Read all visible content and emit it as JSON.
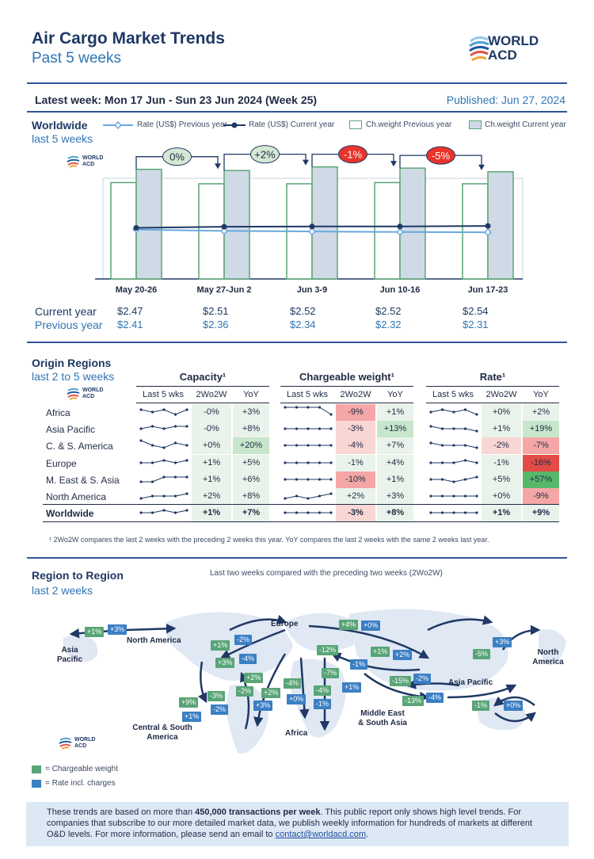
{
  "header": {
    "title": "Air Cargo Market Trends",
    "subtitle": "Past 5 weeks",
    "logo_line1": "WORLD",
    "logo_line2": "ACD",
    "latest_week": "Latest week: Mon 17 Jun - Sun 23 Jun 2024 (Week 25)",
    "published": "Published: Jun 27, 2024"
  },
  "worldwide": {
    "title": "Worldwide",
    "subtitle": "last 5 weeks",
    "small_logo": [
      "WORLD",
      "ACD"
    ],
    "legend": {
      "rate_prev": "Rate (US$) Previous year",
      "rate_curr": "Rate (US$) Current year",
      "weight_prev": "Ch.weight Previous year",
      "weight_curr": "Ch.weight Current year"
    },
    "row_labels": {
      "current": "Current year",
      "previous": "Previous year"
    }
  },
  "chart_data": {
    "type": "bar",
    "categories": [
      "May 20-26",
      "May 27-Jun 2",
      "Jun 3-9",
      "Jun 10-16",
      "Jun 17-23"
    ],
    "series": [
      {
        "name": "Ch.weight Previous year",
        "values": [
          0.8,
          0.79,
          0.79,
          0.8,
          0.79
        ]
      },
      {
        "name": "Ch.weight Current year",
        "values": [
          0.91,
          0.9,
          0.93,
          0.92,
          0.89
        ]
      },
      {
        "name": "Rate (US$) Previous year",
        "values": [
          2.41,
          2.36,
          2.34,
          2.32,
          2.31
        ]
      },
      {
        "name": "Rate (US$) Current year",
        "values": [
          2.47,
          2.51,
          2.52,
          2.52,
          2.54
        ]
      }
    ],
    "rate_labels_current": [
      "$2.47",
      "$2.51",
      "$2.52",
      "$2.52",
      "$2.54"
    ],
    "rate_labels_previous": [
      "$2.41",
      "$2.36",
      "$2.34",
      "$2.32",
      "$2.31"
    ],
    "changes": [
      {
        "label": "0%",
        "color": "#d5e8d4"
      },
      {
        "label": "+2%",
        "color": "#d5e8d4"
      },
      {
        "label": "-1%",
        "color": "#e8342b"
      },
      {
        "label": "-5%",
        "color": "#e8342b"
      }
    ]
  },
  "origin_regions": {
    "title": "Origin Regions",
    "subtitle": "last 2 to 5 weeks",
    "groups": [
      "Capacity¹",
      "Chargeable weight¹",
      "Rate¹"
    ],
    "col_headers": [
      "Last 5 wks",
      "2Wo2W",
      "YoY"
    ],
    "rows": [
      {
        "name": "Africa",
        "cap": [
          "-0%",
          "+3%"
        ],
        "wt": [
          "-9%",
          "+1%"
        ],
        "rate": [
          "+0%",
          "+2%"
        ],
        "spark": [
          [
            3,
            2,
            3,
            1,
            3
          ],
          [
            4,
            4,
            4,
            4,
            1
          ],
          [
            2,
            3,
            2,
            3,
            1
          ]
        ]
      },
      {
        "name": "Asia Pacific",
        "cap": [
          "-0%",
          "+8%"
        ],
        "wt": [
          "-3%",
          "+13%"
        ],
        "rate": [
          "+1%",
          "+19%"
        ],
        "spark": [
          [
            2,
            3,
            2,
            3,
            3
          ],
          [
            2,
            2,
            2,
            2,
            2
          ],
          [
            3,
            2,
            2,
            2,
            1
          ]
        ]
      },
      {
        "name": "C. & S. America",
        "cap": [
          "+0%",
          "+20%"
        ],
        "wt": [
          "-4%",
          "+7%"
        ],
        "rate": [
          "-2%",
          "-7%"
        ],
        "spark": [
          [
            4,
            2,
            1,
            3,
            2
          ],
          [
            2,
            2,
            2,
            2,
            2
          ],
          [
            3,
            2,
            2,
            2,
            1
          ]
        ]
      },
      {
        "name": "Europe",
        "cap": [
          "+1%",
          "+5%"
        ],
        "wt": [
          "-1%",
          "+4%"
        ],
        "rate": [
          "-1%",
          "-16%"
        ],
        "spark": [
          [
            2,
            2,
            3,
            2,
            3
          ],
          [
            2,
            2,
            2,
            2,
            2
          ],
          [
            2,
            2,
            2,
            3,
            2
          ]
        ]
      },
      {
        "name": "M. East & S. Asia",
        "cap": [
          "+1%",
          "+6%"
        ],
        "wt": [
          "-10%",
          "+1%"
        ],
        "rate": [
          "+5%",
          "+57%"
        ],
        "spark": [
          [
            1,
            1,
            3,
            3,
            3
          ],
          [
            2,
            2,
            2,
            2,
            2
          ],
          [
            2,
            2,
            1,
            2,
            3
          ]
        ]
      },
      {
        "name": "North America",
        "cap": [
          "+2%",
          "+8%"
        ],
        "wt": [
          "+2%",
          "+3%"
        ],
        "rate": [
          "+0%",
          "-9%"
        ],
        "spark": [
          [
            1,
            2,
            2,
            2,
            3
          ],
          [
            1,
            2,
            1,
            2,
            3
          ],
          [
            2,
            2,
            2,
            2,
            2
          ]
        ]
      },
      {
        "name": "Worldwide",
        "cap": [
          "+1%",
          "+7%"
        ],
        "wt": [
          "-3%",
          "+8%"
        ],
        "rate": [
          "+1%",
          "+9%"
        ],
        "spark": [
          [
            2,
            2,
            3,
            2,
            3
          ],
          [
            2,
            2,
            2,
            2,
            2
          ],
          [
            2,
            2,
            2,
            2,
            2
          ]
        ]
      }
    ],
    "footnote": "¹ 2Wo2W compares the last 2 weeks with the preceding 2 weeks this year. YoY compares the last 2 weeks with the same 2 weeks last year."
  },
  "region_to_region": {
    "title": "Region to Region",
    "subtitle": "last 2 weeks",
    "note": "Last two weeks compared with the preceding two weeks (2Wo2W)",
    "labels": {
      "asia_pacific_left": "Asia\nPacific",
      "north_america_top": "North America",
      "europe": "Europe",
      "north_america_right": "North\nAmerica",
      "asia_pacific_right": "Asia Pacific",
      "central_south_america": "Central & South\nAmerica",
      "africa": "Africa",
      "middle_east": "Middle East\n& South Asia"
    },
    "key": {
      "green": "= Chargeable weight",
      "blue": "= Rate incl. charges"
    }
  },
  "info": {
    "text_before": "These trends are based on more than ",
    "text_bold": "450,000 transactions per week",
    "text_after": ". This public report only shows high level trends. For companies that subscribe to our more detailed market data, we publish weekly information for hundreds of markets at different O&D levels. For more information, please send an email to ",
    "email": "contact@worldacd.com",
    "end": "."
  }
}
